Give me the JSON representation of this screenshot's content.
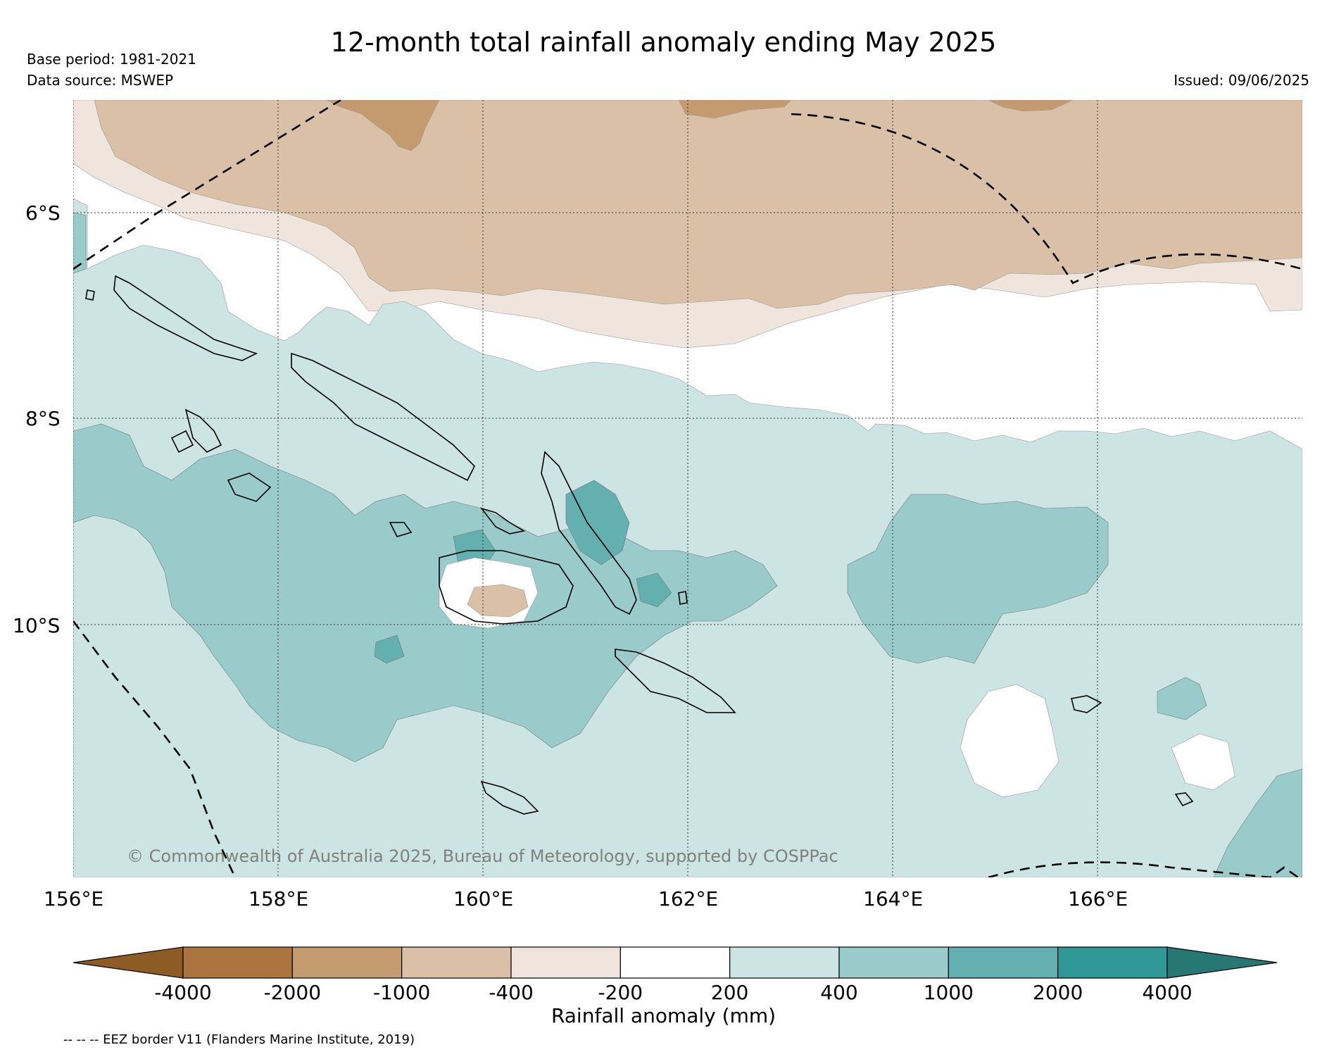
{
  "title": "12-month total rainfall anomaly ending May 2025",
  "base_period": "Base period: 1981-2021",
  "data_source": "Data source: MSWEP",
  "issued": "Issued: 09/06/2025",
  "copyright": "© Commonwealth of Australia 2025, Bureau of Meteorology, supported by COSPPac",
  "map": {
    "lat_labels": [
      "6°S",
      "8°S",
      "10°S"
    ],
    "lon_labels": [
      "156°E",
      "158°E",
      "160°E",
      "162°E",
      "164°E",
      "166°E"
    ],
    "region_colors": {
      "dry_-2000_-1000": "#c49a6f",
      "dry_-1000_-400": "#d9c0a6",
      "dry_-400_-200": "#efe5dc",
      "normal": "#ffffff",
      "wet_200_400": "#cce5e4",
      "wet_400_1000": "#99cbcb",
      "wet_1000_2000": "#64b0b0"
    }
  },
  "colorbar": {
    "label": "Rainfall anomaly (mm)",
    "ticks": [
      "-4000",
      "-2000",
      "-1000",
      "-400",
      "-200",
      "200",
      "400",
      "1000",
      "2000",
      "4000"
    ],
    "colors": [
      "#8d5b24",
      "#ab7540",
      "#c49a6f",
      "#d9c0a6",
      "#efe5dc",
      "#ffffff",
      "#cce5e4",
      "#99cbcb",
      "#64b0b0",
      "#2f9896",
      "#277875"
    ]
  },
  "eez_note": "-- -- -- EEZ border V11 (Flanders Marine Institute, 2019)"
}
